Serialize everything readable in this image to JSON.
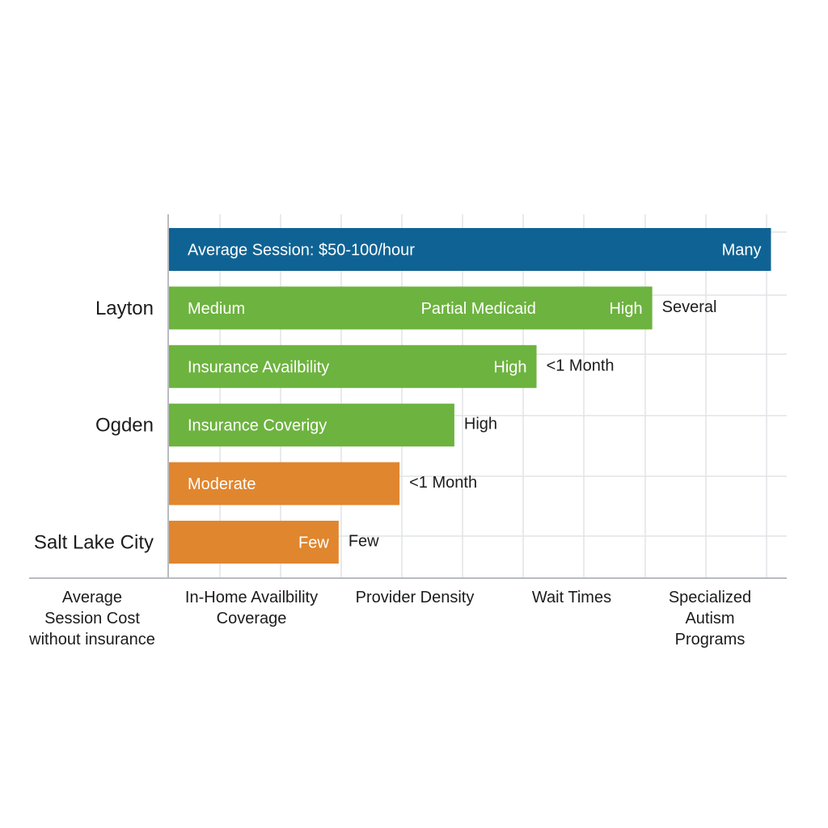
{
  "chart_data": {
    "type": "bar",
    "orientation": "horizontal",
    "title": "",
    "grid": true,
    "colors": {
      "blue": "#0f6394",
      "green": "#6db33f",
      "orange": "#e0862e"
    },
    "category_labels": [
      {
        "row": 1,
        "text": "Layton"
      },
      {
        "row": 3,
        "text": "Ogden"
      },
      {
        "row": 5,
        "text": "Salt Lake City"
      }
    ],
    "x_axis_labels": [
      {
        "lines": [
          "Average",
          "Session Cost",
          "without insurance"
        ]
      },
      {
        "lines": [
          "In-Home Availbility",
          "Coverage"
        ]
      },
      {
        "lines": [
          "Provider Density"
        ]
      },
      {
        "lines": [
          "Wait Times"
        ]
      },
      {
        "lines": [
          "Specialized",
          "Autism",
          "Programs"
        ]
      }
    ],
    "bars": [
      {
        "value": 99,
        "color": "blue",
        "inside_labels": [
          {
            "text": "Average Session: $50-100/hour",
            "at": 0
          },
          {
            "text": "Many",
            "at": 99,
            "anchor": "end"
          }
        ],
        "outside_label": ""
      },
      {
        "value": 79.5,
        "color": "green",
        "inside_labels": [
          {
            "text": "Medium",
            "at": 0
          },
          {
            "text": "Partial Medicaid",
            "at": 62,
            "anchor": "end"
          },
          {
            "text": "High",
            "at": 79.5,
            "anchor": "end"
          }
        ],
        "outside_label": "Several"
      },
      {
        "value": 60.5,
        "color": "green",
        "inside_labels": [
          {
            "text": "Insurance Availbility",
            "at": 0
          },
          {
            "text": "High",
            "at": 60.5,
            "anchor": "end"
          }
        ],
        "outside_label": "<1 Month"
      },
      {
        "value": 47,
        "color": "green",
        "inside_labels": [
          {
            "text": "Insurance Coverigy",
            "at": 0
          }
        ],
        "outside_label": "High"
      },
      {
        "value": 38,
        "color": "orange",
        "inside_labels": [
          {
            "text": "Moderate",
            "at": 0
          }
        ],
        "outside_label": "<1 Month"
      },
      {
        "value": 28,
        "color": "orange",
        "inside_labels": [
          {
            "text": "Few",
            "at": 28,
            "anchor": "end"
          }
        ],
        "outside_label": "Few"
      }
    ]
  }
}
